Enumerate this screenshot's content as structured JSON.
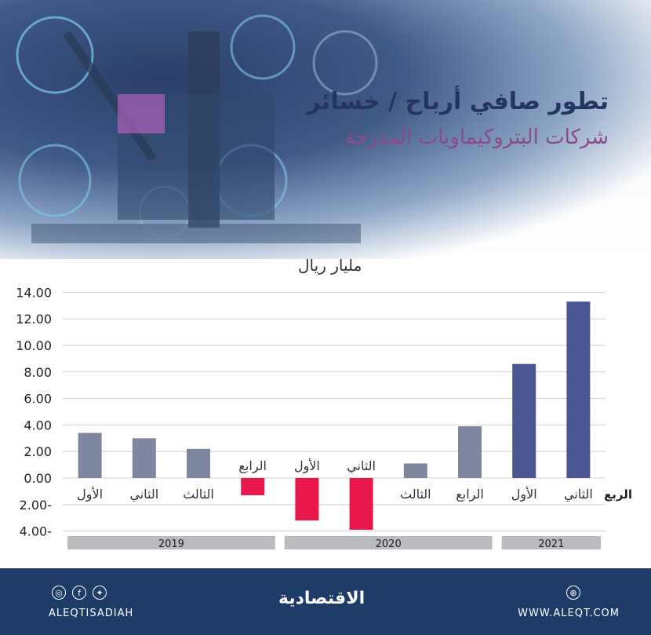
{
  "header": {
    "title": "تطور صافي أرباح / خسائر",
    "subtitle": "شركات البتروكيماويات المدرجة",
    "unit": "مليار ريال"
  },
  "chart_data": {
    "type": "bar",
    "categories": [
      "الأول",
      "الثاني",
      "الثالث",
      "الرابع",
      "الأول",
      "الثاني",
      "الثالث",
      "الرابع",
      "الأول",
      "الثاني"
    ],
    "values": [
      3.4,
      3.0,
      2.2,
      -1.3,
      -3.2,
      -3.9,
      1.1,
      3.9,
      8.6,
      13.3
    ],
    "groups": [
      {
        "label": "2019",
        "start": 0,
        "end": 3
      },
      {
        "label": "2020",
        "start": 4,
        "end": 7
      },
      {
        "label": "2021",
        "start": 8,
        "end": 9
      }
    ],
    "ylim": [
      -4,
      14
    ],
    "yticks": [
      "4.00-",
      "2.00-",
      "0.00",
      "2.00",
      "4.00",
      "6.00",
      "8.00",
      "10.00",
      "12.00",
      "14.00"
    ],
    "xlabel": "الربع",
    "grid": true,
    "colors": {
      "positive": "#7f86a0",
      "positive_2021": "#49568f",
      "negative": "#e8174c",
      "group_band": "#b9bbbf"
    }
  },
  "footer": {
    "handle": "ALEQTISADIAH",
    "website": "WWW.ALEQT.COM",
    "logo": "الاقتصادية",
    "icons": [
      "instagram-icon",
      "facebook-icon",
      "twitter-icon",
      "website-icon"
    ]
  }
}
